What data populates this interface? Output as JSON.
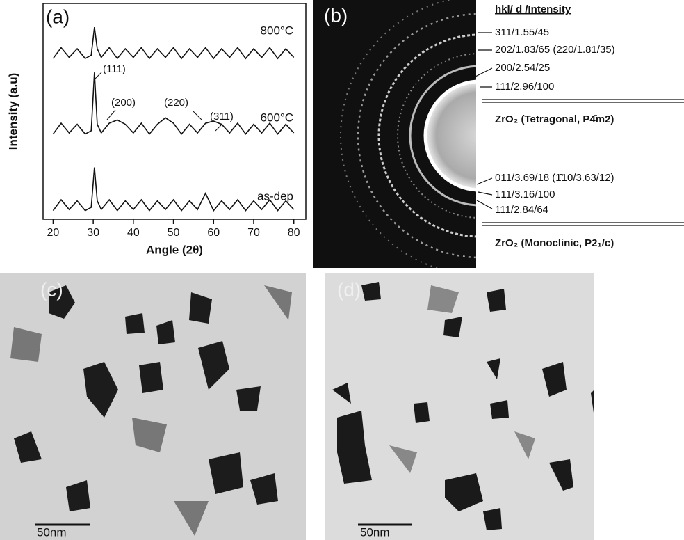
{
  "chart_data": {
    "type": "line",
    "label": "(a)",
    "xlabel": "Angle (2θ)",
    "ylabel": "Intensity (a.u)",
    "xlim": [
      17.5,
      83
    ],
    "ylim": [
      0,
      10
    ],
    "xticks": [
      20,
      30,
      40,
      50,
      60,
      70,
      80
    ],
    "x": [
      20,
      22,
      24,
      26,
      28,
      29.5,
      30.3,
      31,
      32,
      34,
      36,
      38,
      40,
      42,
      44,
      46,
      48,
      50,
      52,
      54,
      56,
      58,
      60,
      62,
      64,
      66,
      68,
      70,
      72,
      74,
      76,
      78,
      80
    ],
    "series": [
      {
        "name": "800°C",
        "color": "#111111",
        "values": [
          7.45,
          7.95,
          7.5,
          7.9,
          7.45,
          7.6,
          8.9,
          7.9,
          7.5,
          7.95,
          7.45,
          7.9,
          7.5,
          7.95,
          7.45,
          7.9,
          7.5,
          7.95,
          7.45,
          7.9,
          7.5,
          7.95,
          7.45,
          7.9,
          7.5,
          7.95,
          7.45,
          7.9,
          7.5,
          7.95,
          7.45,
          7.9,
          7.5
        ]
      },
      {
        "name": "600°C",
        "color": "#111111",
        "values": [
          3.95,
          4.45,
          4.0,
          4.4,
          3.95,
          4.1,
          6.8,
          4.4,
          4.0,
          4.45,
          4.6,
          4.4,
          4.0,
          4.45,
          3.95,
          4.4,
          4.7,
          4.45,
          3.95,
          4.4,
          4.0,
          4.45,
          4.55,
          4.4,
          4.0,
          4.45,
          3.95,
          4.4,
          4.0,
          4.45,
          3.95,
          4.4,
          4.0
        ]
      },
      {
        "name": "as-dep",
        "color": "#111111",
        "values": [
          0.4,
          0.9,
          0.45,
          0.85,
          0.4,
          0.55,
          2.4,
          0.85,
          0.45,
          0.9,
          0.4,
          0.85,
          0.45,
          0.9,
          0.4,
          0.85,
          0.45,
          0.9,
          0.4,
          0.85,
          0.45,
          1.2,
          0.4,
          0.85,
          0.45,
          0.9,
          0.4,
          0.85,
          0.45,
          0.9,
          0.4,
          0.85,
          0.45
        ]
      }
    ],
    "annotations": [
      "(111)",
      "(200)",
      "(220)",
      "(311)"
    ]
  },
  "diffraction": {
    "label": "(b)",
    "header": "hkl/ d /Intensity",
    "tetragonal": {
      "lines": [
        "311/1.55/45",
        "202/1.83/65 (220/1.81/35)",
        "200/2.54/25",
        "111/2.96/100"
      ],
      "phase": "ZrO₂ (Tetragonal, P4̄m2)"
    },
    "monoclinic": {
      "lines": [
        "011/3.69/18 (1̄10/3.63/12)",
        "1̄11/3.16/100",
        "111/2.84/64"
      ],
      "phase": "ZrO₂ (Monoclinic, P2₁/c)"
    }
  },
  "micrographs": [
    {
      "label": "(c)",
      "scale": "50nm"
    },
    {
      "label": "(d)",
      "scale": "50nm"
    }
  ]
}
